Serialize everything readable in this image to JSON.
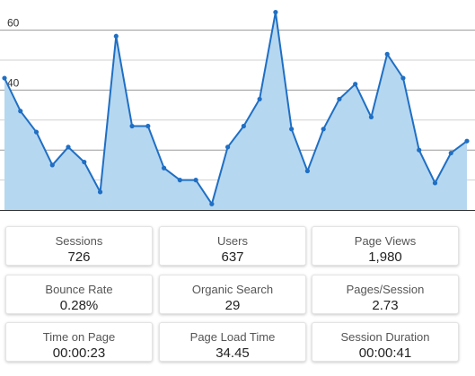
{
  "chart_data": {
    "type": "area",
    "title": "",
    "xlabel": "",
    "ylabel": "",
    "ylim": [
      0,
      65
    ],
    "yticks": [
      20,
      40,
      60
    ],
    "grid": true,
    "legend": "none",
    "colors": {
      "line": "#1f6fc4",
      "fill": "#b6d7f0"
    },
    "series": [
      {
        "values": [
          44,
          33,
          26,
          15,
          21,
          16,
          6,
          58,
          28,
          28,
          14,
          10,
          10,
          2,
          21,
          28,
          37,
          66,
          27,
          13,
          27,
          37,
          42,
          31,
          52,
          44,
          20,
          9,
          19,
          23
        ]
      }
    ]
  },
  "metrics": [
    {
      "label": "Sessions",
      "value": "726"
    },
    {
      "label": "Users",
      "value": "637"
    },
    {
      "label": "Page Views",
      "value": "1,980"
    },
    {
      "label": "Bounce Rate",
      "value": "0.28%"
    },
    {
      "label": "Organic Search",
      "value": "29"
    },
    {
      "label": "Pages/Session",
      "value": "2.73"
    },
    {
      "label": "Time on Page",
      "value": "00:00:23"
    },
    {
      "label": "Page Load Time",
      "value": "34.45"
    },
    {
      "label": "Session Duration",
      "value": "00:00:41"
    }
  ]
}
